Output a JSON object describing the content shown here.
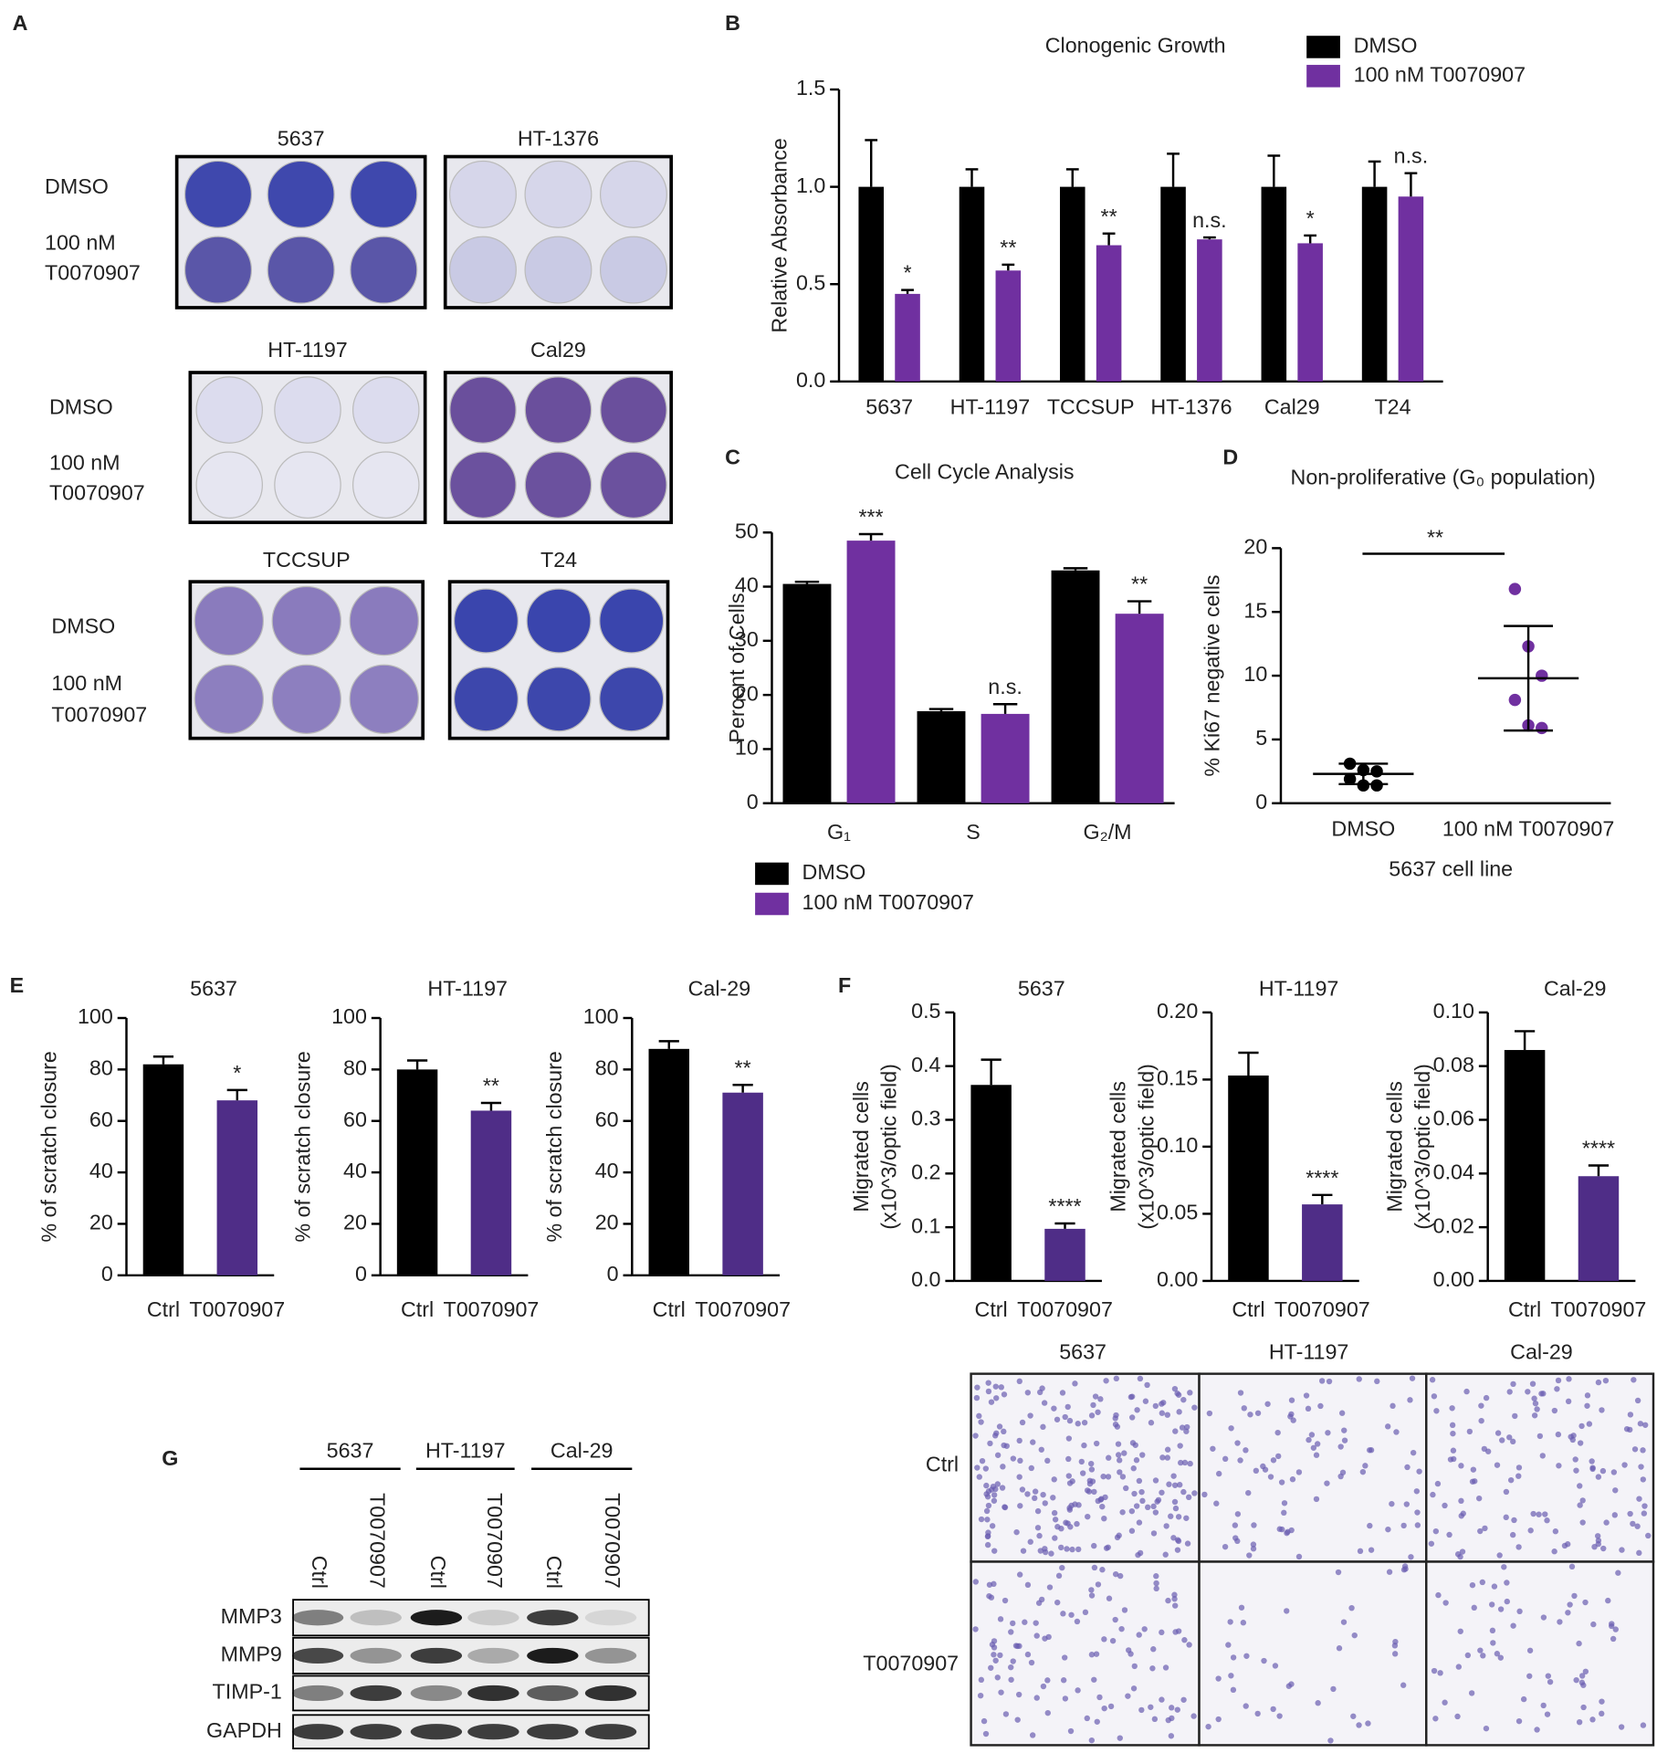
{
  "chart_data": [
    {
      "type": "bar",
      "panel": "B",
      "title": "Clonogenic Growth",
      "ylabel": "Relative Absorbance",
      "categories": [
        "5637",
        "HT-1197",
        "TCCSUP",
        "HT-1376",
        "Cal29",
        "T24"
      ],
      "series": [
        {
          "name": "DMSO",
          "color": "#000000",
          "values": [
            1,
            1,
            1,
            1,
            1,
            1
          ],
          "errors": [
            0.24,
            0.09,
            0.09,
            0.17,
            0.16,
            0.13
          ]
        },
        {
          "name": "100 nM T0070907",
          "color": "#7030a0",
          "values": [
            0.45,
            0.57,
            0.7,
            0.73,
            0.71,
            0.95
          ],
          "errors": [
            0.02,
            0.03,
            0.06,
            0.01,
            0.04,
            0.12
          ],
          "significance": [
            "*",
            "**",
            "**",
            "n.s.",
            "*",
            "n.s."
          ]
        }
      ],
      "ylim": [
        0,
        1.5
      ],
      "yticks": [
        {
          "value": 0,
          "label": "0.0"
        },
        0.5,
        {
          "value": 1,
          "label": "1.0"
        },
        1.5
      ],
      "legend": "top-right"
    },
    {
      "type": "bar",
      "panel": "C",
      "title": "Cell Cycle Analysis",
      "ylabel": "Percent of Cells",
      "categories": [
        "G₁",
        "S",
        "G₂/M"
      ],
      "series": [
        {
          "name": "DMSO",
          "color": "#000000",
          "values": [
            40.5,
            17,
            43
          ],
          "errors": [
            0.4,
            0.4,
            0.4
          ]
        },
        {
          "name": "100 nM T0070907",
          "color": "#7030a0",
          "values": [
            48.5,
            16.5,
            35
          ],
          "errors": [
            1.2,
            1.8,
            2.3
          ],
          "significance": [
            "***",
            "n.s.",
            "**"
          ]
        }
      ],
      "ylim": [
        0,
        50
      ],
      "yticks": [
        0,
        10,
        20,
        30,
        40,
        50
      ],
      "legend": "bottom-left"
    },
    {
      "type": "dot",
      "panel": "D",
      "title": "Non-proliferative (G₀ population)",
      "ylabel": "% Ki67 negative cells",
      "xlabel": "5637 cell line",
      "categories": [
        "DMSO",
        "100 nM T0070907"
      ],
      "points": [
        [
          3.1,
          2.6,
          2.5,
          1.9,
          1.4,
          1.4
        ],
        [
          16.8,
          12.3,
          10.0,
          8.1,
          6.1,
          5.9
        ]
      ],
      "mean": [
        2.3,
        9.8
      ],
      "sd": [
        0.8,
        4.1
      ],
      "colors": [
        "#000000",
        "#7030a0"
      ],
      "significance": "**",
      "ylim": [
        0,
        20
      ],
      "yticks": [
        0,
        5,
        10,
        15,
        20
      ]
    },
    {
      "type": "bar",
      "panel": "E",
      "title": "5637",
      "ylabel": "% of scratch closure",
      "categories": [
        "Ctrl",
        "T0070907"
      ],
      "values": [
        82,
        68
      ],
      "errors": [
        3,
        4
      ],
      "colors": [
        "#000000",
        "#4f2d87"
      ],
      "significance": "*",
      "ylim": [
        0,
        100
      ],
      "yticks": [
        0,
        20,
        40,
        60,
        80,
        100
      ]
    },
    {
      "type": "bar",
      "title": "HT-1197",
      "ylabel": "% of scratch closure",
      "categories": [
        "Ctrl",
        "T0070907"
      ],
      "values": [
        80,
        64
      ],
      "errors": [
        3.5,
        3
      ],
      "colors": [
        "#000000",
        "#4f2d87"
      ],
      "significance": "**",
      "ylim": [
        0,
        100
      ],
      "yticks": [
        0,
        20,
        40,
        60,
        80,
        100
      ]
    },
    {
      "type": "bar",
      "title": "Cal-29",
      "ylabel": "% of scratch closure",
      "categories": [
        "Ctrl",
        "T0070907"
      ],
      "values": [
        88,
        71
      ],
      "errors": [
        3,
        3
      ],
      "colors": [
        "#000000",
        "#4f2d87"
      ],
      "significance": "**",
      "ylim": [
        0,
        100
      ],
      "yticks": [
        0,
        20,
        40,
        60,
        80,
        100
      ]
    },
    {
      "type": "bar",
      "panel": "F",
      "title": "5637",
      "ylabel": [
        "Migrated cells",
        "(x10^3/optic field)"
      ],
      "categories": [
        "Ctrl",
        "T0070907"
      ],
      "values": [
        0.365,
        0.097
      ],
      "errors": [
        0.047,
        0.01
      ],
      "colors": [
        "#000000",
        "#4f2d87"
      ],
      "significance": "****",
      "ylim": [
        0,
        0.5
      ],
      "yticks": [
        {
          "value": 0,
          "label": "0.0"
        },
        0.1,
        0.2,
        0.3,
        0.4,
        0.5
      ]
    },
    {
      "type": "bar",
      "title": "HT-1197",
      "ylabel": [
        "Migrated cells",
        "(x10^3/optic field)"
      ],
      "categories": [
        "Ctrl",
        "T0070907"
      ],
      "values": [
        0.153,
        0.057
      ],
      "errors": [
        0.017,
        0.007
      ],
      "colors": [
        "#000000",
        "#4f2d87"
      ],
      "significance": "****",
      "ylim": [
        0,
        0.2
      ],
      "yticks": [
        {
          "value": 0,
          "label": "0.00"
        },
        {
          "value": 0.05,
          "label": "0.05"
        },
        {
          "value": 0.1,
          "label": "0.10"
        },
        {
          "value": 0.15,
          "label": "0.15"
        },
        {
          "value": 0.2,
          "label": "0.20"
        }
      ]
    },
    {
      "type": "bar",
      "title": "Cal-29",
      "ylabel": [
        "Migrated cells",
        "(x10^3/optic field)"
      ],
      "categories": [
        "Ctrl",
        "T0070907"
      ],
      "values": [
        0.086,
        0.039
      ],
      "errors": [
        0.007,
        0.004
      ],
      "colors": [
        "#000000",
        "#4f2d87"
      ],
      "significance": "****",
      "ylim": [
        0,
        0.1
      ],
      "yticks": [
        {
          "value": 0,
          "label": "0.00"
        },
        0.02,
        0.04,
        0.06,
        0.08,
        {
          "value": 0.1,
          "label": "0.10"
        }
      ]
    }
  ],
  "panel_a": {
    "label": "A",
    "rows": [
      {
        "plates": [
          "5637",
          "HT-1376"
        ],
        "labels": [
          "DMSO",
          [
            "100 nM",
            "T0070907"
          ]
        ]
      },
      {
        "plates": [
          "HT-1197",
          "Cal29"
        ],
        "labels": [
          "DMSO",
          [
            "100 nM",
            "T0070907"
          ]
        ]
      },
      {
        "plates": [
          "TCCSUP",
          "T24"
        ],
        "labels": [
          "DMSO",
          [
            "100 nM",
            "T0070907"
          ]
        ]
      }
    ]
  },
  "panel_f_images": {
    "columns": [
      "5637",
      "HT-1197",
      "Cal-29"
    ],
    "rows": [
      "Ctrl",
      "T0070907"
    ]
  },
  "panel_g": {
    "label": "G",
    "groups": [
      "5637",
      "HT-1197",
      "Cal-29"
    ],
    "lanes": [
      "Ctrl",
      "T0070907",
      "Ctrl",
      "T0070907",
      "Ctrl",
      "T0070907"
    ],
    "proteins": [
      "MMP3",
      "MMP9",
      "TIMP-1",
      "GAPDH"
    ]
  }
}
